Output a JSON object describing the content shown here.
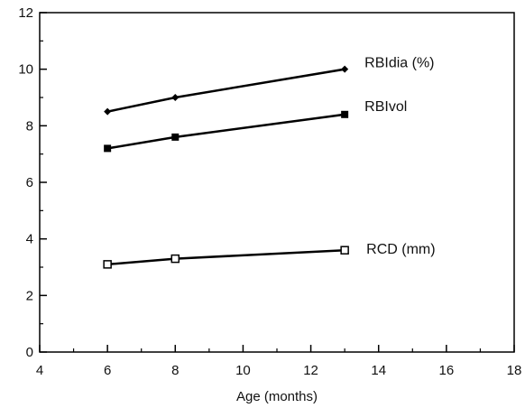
{
  "chart_data": {
    "type": "line",
    "title": "",
    "xlabel": "Age (months)",
    "ylabel": "",
    "xlim": [
      4,
      18
    ],
    "ylim": [
      0,
      12
    ],
    "x_ticks": [
      4,
      6,
      8,
      10,
      12,
      14,
      16,
      18
    ],
    "y_ticks": [
      0,
      2,
      4,
      6,
      8,
      10,
      12
    ],
    "grid": false,
    "legend": "inline labels at line ends",
    "series": [
      {
        "name": "RBIdia (%)",
        "marker": "diamond",
        "x": [
          6,
          8,
          13
        ],
        "y": [
          8.5,
          9.0,
          10.0
        ]
      },
      {
        "name": "RBIvol",
        "marker": "square",
        "x": [
          6,
          8,
          13
        ],
        "y": [
          7.2,
          7.6,
          8.4
        ]
      },
      {
        "name": "RCD (mm)",
        "marker": "open-square",
        "x": [
          6,
          8,
          13
        ],
        "y": [
          3.1,
          3.3,
          3.6
        ]
      }
    ],
    "colors": {
      "line": "#000000",
      "axis": "#000000"
    }
  }
}
